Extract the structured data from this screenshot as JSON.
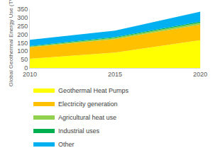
{
  "chart_data": {
    "type": "area",
    "stacked": true,
    "x": [
      2010,
      2015,
      2020
    ],
    "xlim": [
      2010,
      2020
    ],
    "xticks": [
      2010,
      2015,
      2020
    ],
    "ylim": [
      0,
      350
    ],
    "yticks": [
      0,
      50,
      100,
      150,
      200,
      250,
      300,
      350
    ],
    "y_label": "Global Geothermal Energy Use (TWh)",
    "grid": false,
    "legend": "bottom",
    "series": [
      {
        "name": "Geothermal Heat Pumps",
        "color": "#ffff00",
        "values": [
          55,
          92,
          165
        ]
      },
      {
        "name": "Electricity generation",
        "color": "#ffc000",
        "values": [
          68,
          80,
          93
        ]
      },
      {
        "name": "Agricultural heat use",
        "color": "#92d050",
        "values": [
          5,
          8,
          12
        ]
      },
      {
        "name": "Industrial uses",
        "color": "#00b050",
        "values": [
          3,
          4,
          6
        ]
      },
      {
        "name": "Other",
        "color": "#00b0f0",
        "values": [
          37,
          38,
          59
        ]
      }
    ]
  }
}
